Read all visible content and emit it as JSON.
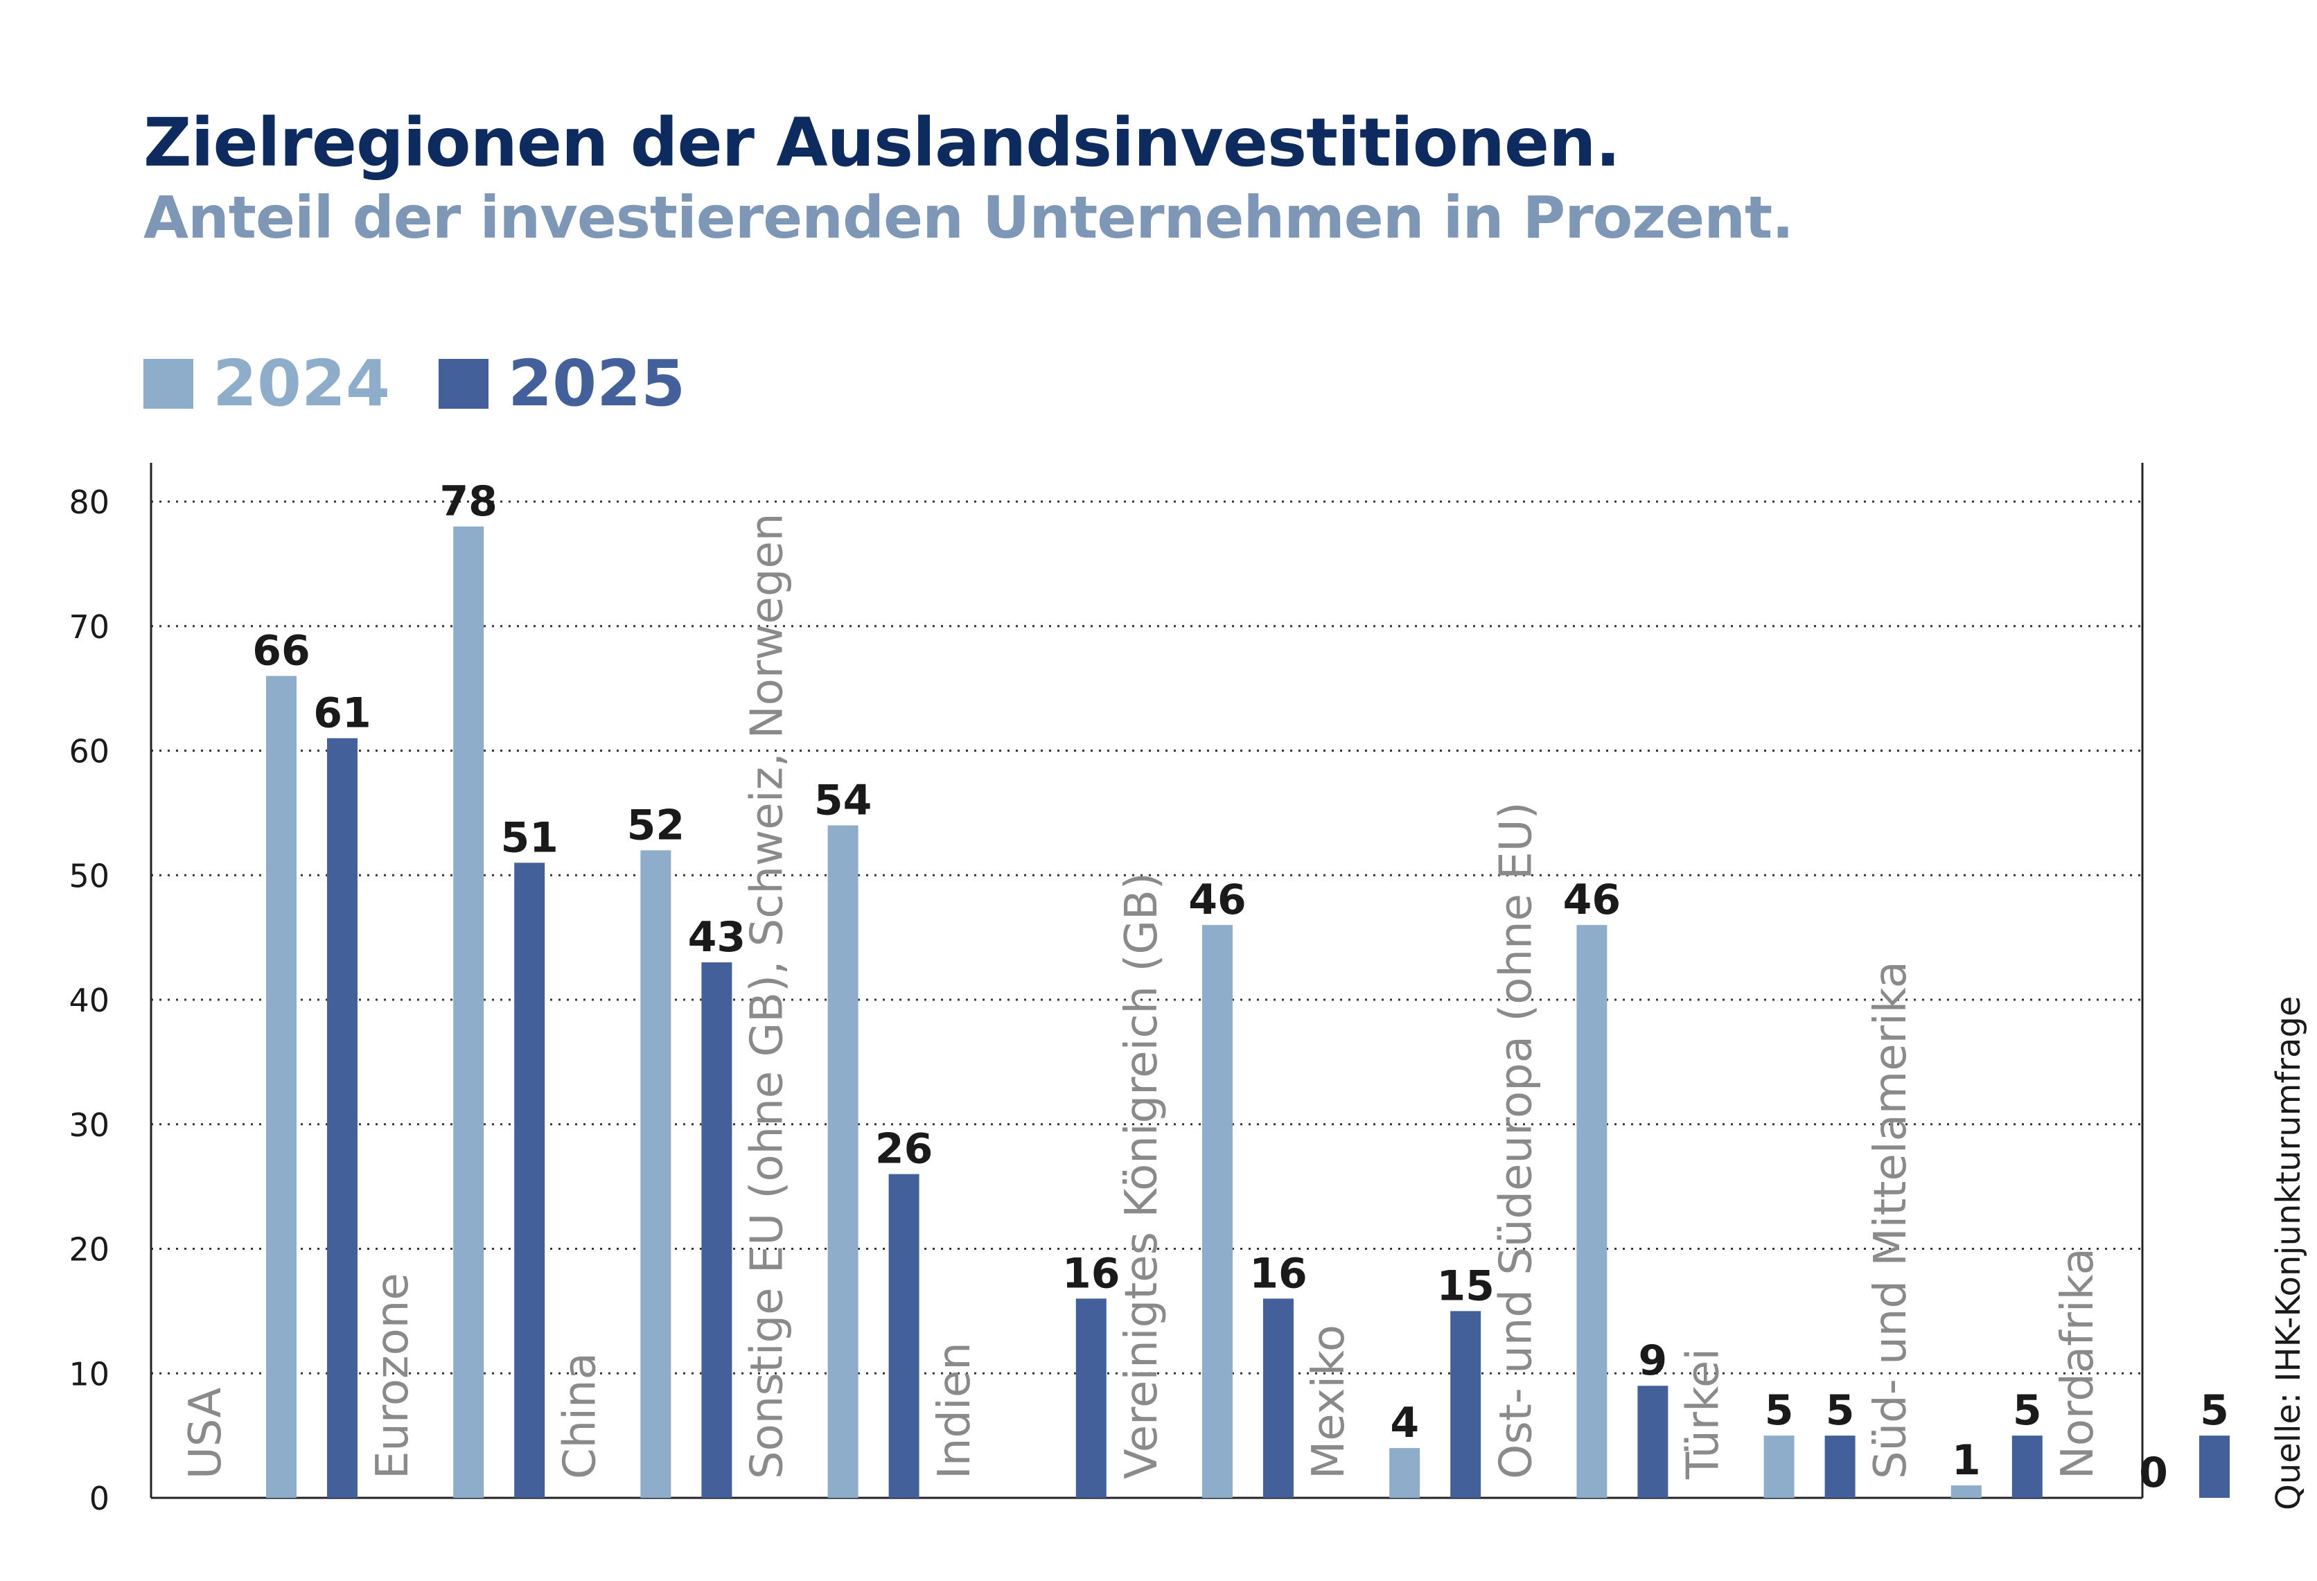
{
  "chart_data": {
    "type": "bar",
    "title": "Zielregionen der Auslandsinvestitionen.",
    "subtitle": "Anteil der investierenden Unternehmen in Prozent.",
    "categories": [
      "USA",
      "Eurozone",
      "China",
      "Sonstige EU (ohne GB), Schweiz, Norwegen",
      "Indien",
      "Vereinigtes Königreich (GB)",
      "Mexiko",
      "Ost- und Südeuropa (ohne EU)",
      "Türkei",
      "Süd- und Mittelamerika",
      "Nordafrika"
    ],
    "series": [
      {
        "name": "2024",
        "color": "#8eadcb",
        "values": [
          66,
          78,
          52,
          54,
          null,
          46,
          4,
          46,
          5,
          1,
          0
        ]
      },
      {
        "name": "2025",
        "color": "#43609b",
        "values": [
          61,
          51,
          43,
          26,
          16,
          16,
          15,
          9,
          5,
          5,
          5
        ]
      }
    ],
    "ylim": [
      0,
      80
    ],
    "yticks": [
      0,
      10,
      20,
      30,
      40,
      50,
      60,
      70,
      80
    ],
    "grid": "dotted horizontal",
    "legend_position": "top-left",
    "source": "Quelle: IHK-Konjunkturumfrage"
  }
}
